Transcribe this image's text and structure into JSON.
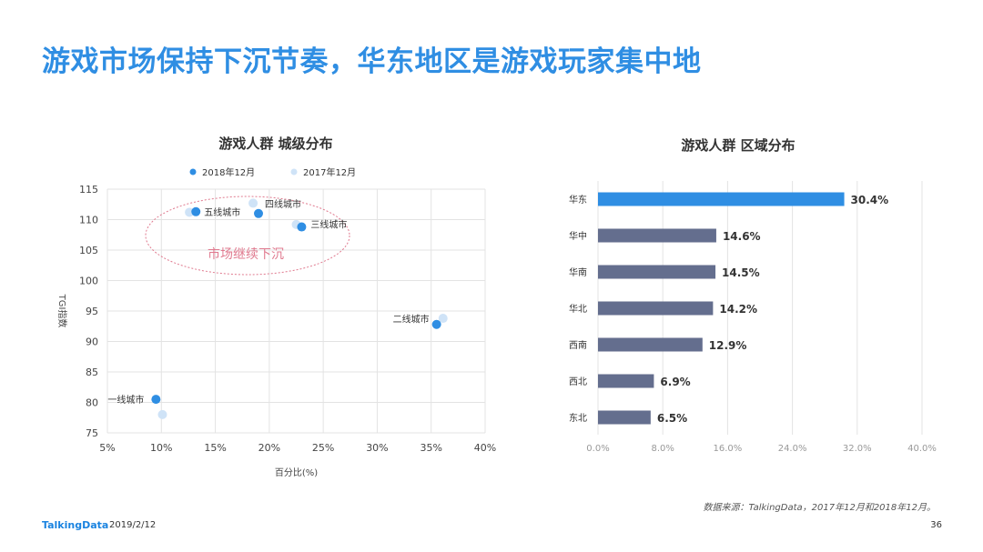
{
  "page": {
    "title": "游戏市场保持下沉节奏，华东地区是游戏玩家集中地",
    "source": "数据来源：TalkingData，2017年12月和2018年12月。",
    "logo": "TalkingData",
    "date": "2019/2/12",
    "page_number": "36"
  },
  "colors": {
    "title": "#2f8ee3",
    "series_2018": "#2f8ee3",
    "series_2017": "#cfe3f7",
    "bar_highlight": "#2f8ee3",
    "bar_default": "#646e8e",
    "annotation": "#e07a8f"
  },
  "chart_data": [
    {
      "type": "scatter",
      "title": "游戏人群  城级分布",
      "xlabel": "百分比(%)",
      "ylabel": "TGI指数",
      "xlim": [
        5,
        40
      ],
      "ylim": [
        75,
        115
      ],
      "xticks": [
        5,
        10,
        15,
        20,
        25,
        30,
        35,
        40
      ],
      "xtick_labels": [
        "5%",
        "10%",
        "15%",
        "20%",
        "25%",
        "30%",
        "35%",
        "40%"
      ],
      "yticks": [
        75,
        80,
        85,
        90,
        95,
        100,
        105,
        110,
        115
      ],
      "ytick_labels": [
        "75",
        "80",
        "85",
        "90",
        "95",
        "100",
        "105",
        "110",
        "115"
      ],
      "grid": true,
      "legend": "top",
      "annotation": "市场继续下沉",
      "series": [
        {
          "name": "2018年12月",
          "points": [
            {
              "label": "一线城市",
              "x": 9.5,
              "y": 80.5
            },
            {
              "label": "二线城市",
              "x": 35.5,
              "y": 92.8
            },
            {
              "label": "三线城市",
              "x": 23.0,
              "y": 108.8
            },
            {
              "label": "四线城市",
              "x": 19.0,
              "y": 111.0
            },
            {
              "label": "五线城市",
              "x": 13.2,
              "y": 111.3
            }
          ]
        },
        {
          "name": "2017年12月",
          "points": [
            {
              "label": "一线城市",
              "x": 10.1,
              "y": 78.0
            },
            {
              "label": "二线城市",
              "x": 36.1,
              "y": 93.8
            },
            {
              "label": "三线城市",
              "x": 22.5,
              "y": 109.2
            },
            {
              "label": "四线城市",
              "x": 18.5,
              "y": 112.7
            },
            {
              "label": "五线城市",
              "x": 12.6,
              "y": 111.2
            }
          ]
        }
      ]
    },
    {
      "type": "bar",
      "orientation": "horizontal",
      "title": "游戏人群  区域分布",
      "categories": [
        "华东",
        "华中",
        "华南",
        "华北",
        "西南",
        "西北",
        "东北"
      ],
      "values": [
        30.4,
        14.6,
        14.5,
        14.2,
        12.9,
        6.9,
        6.5
      ],
      "value_labels": [
        "30.4%",
        "14.6%",
        "14.5%",
        "14.2%",
        "12.9%",
        "6.9%",
        "6.5%"
      ],
      "xlim": [
        0,
        40
      ],
      "xticks": [
        0,
        8,
        16,
        24,
        32,
        40
      ],
      "xtick_labels": [
        "0.0%",
        "8.0%",
        "16.0%",
        "24.0%",
        "32.0%",
        "40.0%"
      ],
      "grid": true
    }
  ]
}
